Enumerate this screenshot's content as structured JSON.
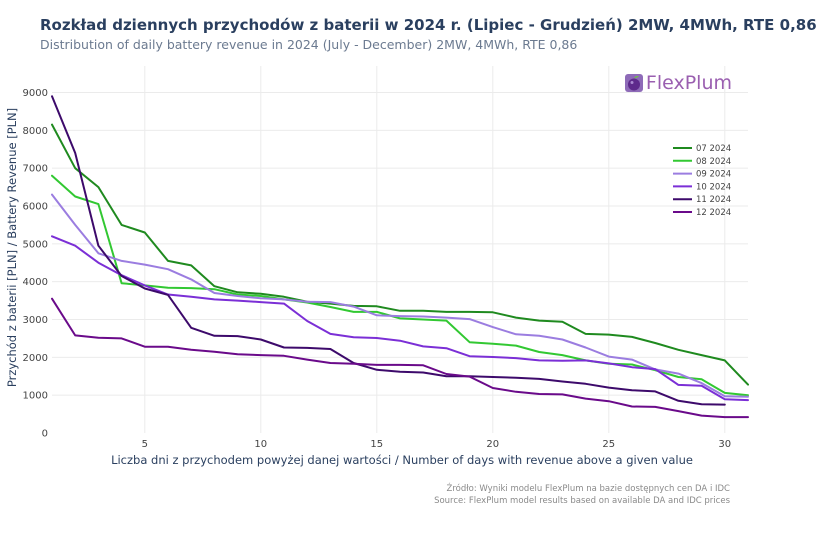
{
  "header": {
    "title": "Rozkład dziennych przychodów z baterii w 2024 r. (Lipiec - Grudzień) 2MW, 4MWh, RTE 0,86",
    "subtitle": "Distribution of daily battery revenue in 2024 (July - December) 2MW, 4MWh, RTE 0,86"
  },
  "logo": {
    "text": "FlexPlum",
    "icon": "plum-icon"
  },
  "footer": {
    "source_pl": "Źródło: Wyniki modelu FlexPlum na bazie dostępnych cen DA i IDC",
    "source_en": "Source: FlexPlum model results based on available DA and IDC prices"
  },
  "chart_data": {
    "type": "line",
    "xlabel": "Liczba dni z przychodem powyżej danej wartości / Number of days with revenue above a given value",
    "ylabel": "Przychód z baterii [PLN] / Battery Revenue [PLN]",
    "xlim": [
      1,
      31
    ],
    "ylim": [
      0,
      9700
    ],
    "xticks": [
      5,
      10,
      15,
      20,
      25,
      30
    ],
    "yticks": [
      0,
      1000,
      2000,
      3000,
      4000,
      5000,
      6000,
      7000,
      8000,
      9000
    ],
    "legend_position": "right",
    "series": [
      {
        "name": "07 2024",
        "color": "#1f8a1f",
        "x": [
          1,
          2,
          3,
          4,
          5,
          6,
          7,
          8,
          9,
          10,
          11,
          12,
          13,
          14,
          15,
          16,
          17,
          18,
          19,
          20,
          21,
          22,
          23,
          24,
          25,
          26,
          27,
          28,
          29,
          30,
          31
        ],
        "values": [
          8150,
          7000,
          6500,
          5500,
          5300,
          4550,
          4430,
          3880,
          3720,
          3680,
          3600,
          3470,
          3420,
          3360,
          3350,
          3230,
          3230,
          3200,
          3200,
          3190,
          3050,
          2970,
          2940,
          2620,
          2600,
          2540,
          2380,
          2200,
          2060,
          1920,
          1280
        ]
      },
      {
        "name": "08 2024",
        "color": "#32c832",
        "x": [
          1,
          2,
          3,
          4,
          5,
          6,
          7,
          8,
          9,
          10,
          11,
          12,
          13,
          14,
          15,
          16,
          17,
          18,
          19,
          20,
          21,
          22,
          23,
          24,
          25,
          26,
          27,
          28,
          29,
          30,
          31
        ],
        "values": [
          6800,
          6250,
          6050,
          3960,
          3900,
          3840,
          3830,
          3800,
          3660,
          3620,
          3530,
          3450,
          3330,
          3200,
          3200,
          3030,
          3000,
          2970,
          2400,
          2360,
          2310,
          2140,
          2060,
          1920,
          1830,
          1810,
          1660,
          1480,
          1420,
          1060,
          1000
        ]
      },
      {
        "name": "09 2024",
        "color": "#9b7de0",
        "x": [
          1,
          2,
          3,
          4,
          5,
          6,
          7,
          8,
          9,
          10,
          11,
          12,
          13,
          14,
          15,
          16,
          17,
          18,
          19,
          20,
          21,
          22,
          23,
          24,
          25,
          26,
          27,
          28,
          29,
          30,
          31
        ],
        "values": [
          6300,
          5500,
          4750,
          4550,
          4450,
          4330,
          4060,
          3700,
          3620,
          3560,
          3530,
          3470,
          3460,
          3340,
          3110,
          3090,
          3080,
          3050,
          3010,
          2800,
          2610,
          2570,
          2470,
          2260,
          2020,
          1940,
          1680,
          1570,
          1320,
          970,
          960
        ]
      },
      {
        "name": "10 2024",
        "color": "#7b2fd6",
        "x": [
          1,
          2,
          3,
          4,
          5,
          6,
          7,
          8,
          9,
          10,
          11,
          12,
          13,
          14,
          15,
          16,
          17,
          18,
          19,
          20,
          21,
          22,
          23,
          24,
          25,
          26,
          27,
          28,
          29,
          30,
          31
        ],
        "values": [
          5200,
          4950,
          4500,
          4170,
          3900,
          3660,
          3600,
          3530,
          3500,
          3460,
          3420,
          2960,
          2620,
          2530,
          2510,
          2440,
          2290,
          2240,
          2030,
          2010,
          1980,
          1920,
          1910,
          1920,
          1840,
          1740,
          1690,
          1270,
          1250,
          890,
          870
        ]
      },
      {
        "name": "11 2024",
        "color": "#3d0a6b",
        "x": [
          1,
          2,
          3,
          4,
          5,
          6,
          7,
          8,
          9,
          10,
          11,
          12,
          13,
          14,
          15,
          16,
          17,
          18,
          19,
          20,
          21,
          22,
          23,
          24,
          25,
          26,
          27,
          28,
          29,
          30
        ],
        "values": [
          8900,
          7400,
          4950,
          4150,
          3820,
          3650,
          2780,
          2570,
          2560,
          2470,
          2260,
          2250,
          2220,
          1850,
          1670,
          1620,
          1600,
          1500,
          1500,
          1480,
          1460,
          1430,
          1360,
          1300,
          1200,
          1130,
          1100,
          850,
          760,
          750
        ]
      },
      {
        "name": "12 2024",
        "color": "#6a0a8a",
        "x": [
          1,
          2,
          3,
          4,
          5,
          6,
          7,
          8,
          9,
          10,
          11,
          12,
          13,
          14,
          15,
          16,
          17,
          18,
          19,
          20,
          21,
          22,
          23,
          24,
          25,
          26,
          27,
          28,
          29,
          30,
          31
        ],
        "values": [
          3550,
          2580,
          2520,
          2500,
          2280,
          2280,
          2200,
          2150,
          2080,
          2060,
          2040,
          1940,
          1850,
          1830,
          1800,
          1800,
          1790,
          1560,
          1490,
          1190,
          1090,
          1030,
          1020,
          910,
          840,
          700,
          690,
          580,
          460,
          420,
          420
        ]
      }
    ]
  }
}
